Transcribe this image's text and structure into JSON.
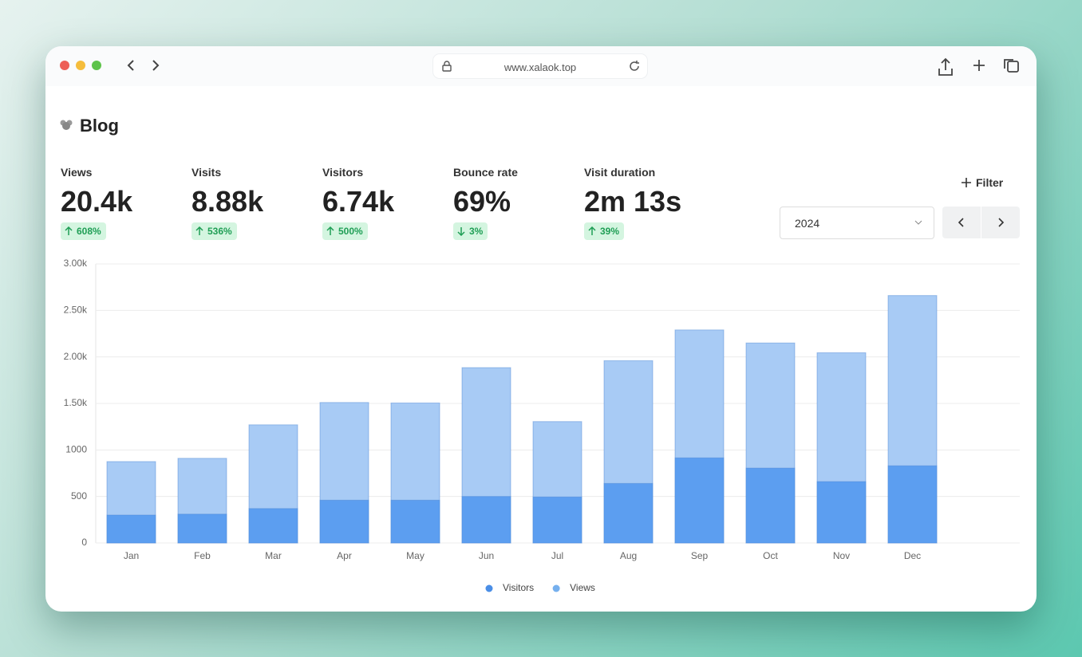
{
  "browser": {
    "url": "www.xalaok.top"
  },
  "header": {
    "title": "Blog"
  },
  "metrics": [
    {
      "label": "Views",
      "value": "20.4k",
      "change": "608%",
      "direction": "up"
    },
    {
      "label": "Visits",
      "value": "8.88k",
      "change": "536%",
      "direction": "up"
    },
    {
      "label": "Visitors",
      "value": "6.74k",
      "change": "500%",
      "direction": "up"
    },
    {
      "label": "Bounce rate",
      "value": "69%",
      "change": "3%",
      "direction": "down"
    },
    {
      "label": "Visit duration",
      "value": "2m 13s",
      "change": "39%",
      "direction": "up"
    }
  ],
  "controls": {
    "filter": "Filter",
    "year": "2024"
  },
  "chart_data": {
    "type": "bar",
    "overlap": true,
    "grid": true,
    "categories": [
      "Jan",
      "Feb",
      "Mar",
      "Apr",
      "May",
      "Jun",
      "Jul",
      "Aug",
      "Sep",
      "Oct",
      "Nov",
      "Dec"
    ],
    "series": [
      {
        "name": "Visitors",
        "color": "#5c9ef0",
        "legend_color": "#4a8ee6",
        "values": [
          300,
          310,
          370,
          460,
          460,
          500,
          495,
          640,
          915,
          805,
          660,
          830
        ]
      },
      {
        "name": "Views",
        "color": "#a8cbf5",
        "legend_color": "#76b0ee",
        "values": [
          875,
          910,
          1270,
          1510,
          1505,
          1885,
          1305,
          1960,
          2290,
          2150,
          2045,
          2660
        ]
      }
    ],
    "ylim": [
      0,
      3000
    ],
    "yticks": [
      0,
      500,
      1000,
      {
        "value": 1500,
        "label": "1.50k"
      },
      {
        "value": 2000,
        "label": "2.00k"
      },
      {
        "value": 2500,
        "label": "2.50k"
      },
      {
        "value": 3000,
        "label": "3.00k"
      }
    ]
  }
}
